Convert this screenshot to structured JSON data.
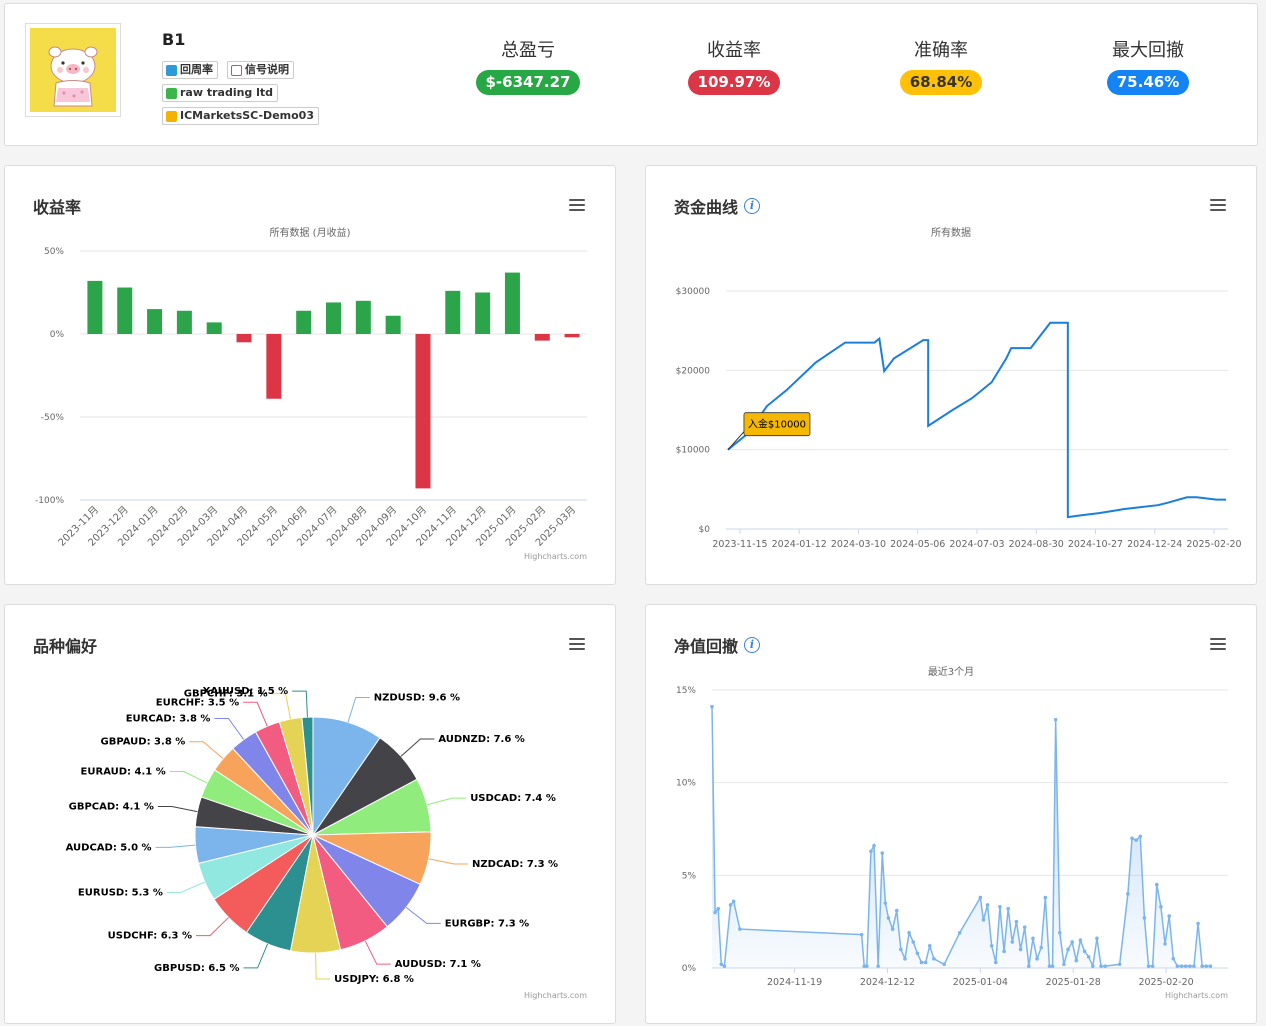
{
  "header": {
    "trader_name": "B1",
    "chips": [
      {
        "label": "回周率",
        "color": "#2f9bd6"
      },
      {
        "label": "信号说明",
        "color": "#d94a5a"
      },
      {
        "label": "raw trading ltd",
        "color": "#3cb54a"
      },
      {
        "label": "ICMarketsSC-Demo03",
        "color": "#f2b200"
      }
    ],
    "stats": [
      {
        "label": "总盈亏",
        "value": "$-6347.27",
        "color": "#28a745"
      },
      {
        "label": "收益率",
        "value": "109.97%",
        "color": "#dc3545"
      },
      {
        "label": "准确率",
        "value": "68.84%",
        "color": "#ffc107"
      },
      {
        "label": "最大回撤",
        "value": "75.46%",
        "color": "#1484f5"
      }
    ]
  },
  "panels": {
    "returns": {
      "title": "收益率",
      "subtitle": "所有数据 (月收益)",
      "credit": "Highcharts.com"
    },
    "equity": {
      "title": "资金曲线",
      "subtitle": "所有数据",
      "credit": "",
      "deposit_label": "入金$10000"
    },
    "symbols": {
      "title": "品种偏好",
      "credit": "Highcharts.com"
    },
    "drawdown": {
      "title": "净值回撤",
      "subtitle": "最近3个月",
      "credit": "Highcharts.com"
    }
  },
  "chart_data": [
    {
      "id": "returns",
      "type": "bar",
      "title": "收益率",
      "subtitle": "所有数据 (月收益)",
      "categories": [
        "2023-11月",
        "2023-12月",
        "2024-01月",
        "2024-02月",
        "2024-03月",
        "2024-04月",
        "2024-05月",
        "2024-06月",
        "2024-07月",
        "2024-08月",
        "2024-09月",
        "2024-10月",
        "2024-11月",
        "2024-12月",
        "2025-01月",
        "2025-02月",
        "2025-03月"
      ],
      "values": [
        32,
        28,
        15,
        14,
        7,
        -5,
        -39,
        14,
        19,
        20,
        11,
        -93,
        26,
        25,
        37,
        -4,
        -2
      ],
      "ylim": [
        -100,
        50
      ],
      "yticks": [
        50,
        0,
        -50,
        -100
      ],
      "ytick_labels": [
        "50%",
        "0%",
        "-50%",
        "-100%"
      ],
      "positive_color": "#2ca54a",
      "negative_color": "#dc3545"
    },
    {
      "id": "equity",
      "type": "line",
      "title": "资金曲线",
      "subtitle": "所有数据",
      "ylim": [
        0,
        30000
      ],
      "yticks": [
        0,
        10000,
        20000,
        30000
      ],
      "ytick_labels": [
        "$0",
        "$10000",
        "$20000",
        "$30000"
      ],
      "xticks": [
        "2023-11-15",
        "2024-01-12",
        "2024-03-10",
        "2024-05-06",
        "2024-07-03",
        "2024-08-30",
        "2024-10-27",
        "2024-12-24",
        "2025-02-20"
      ],
      "xlim": [
        -2,
        512
      ],
      "x": [
        0,
        20,
        40,
        60,
        90,
        120,
        150,
        155,
        160,
        170,
        200,
        205,
        230,
        250,
        270,
        285,
        290,
        310,
        330,
        345,
        348,
        360,
        380,
        400,
        405,
        440,
        450,
        470,
        480,
        500,
        510
      ],
      "y": [
        10000,
        12000,
        15500,
        17500,
        21000,
        23500,
        23500,
        24000,
        19900,
        21500,
        23800,
        13000,
        15000,
        16500,
        18500,
        21500,
        22800,
        22800,
        26000,
        26000,
        1500,
        1700,
        2000,
        2400,
        2500,
        3000,
        3300,
        4000,
        4000,
        3700,
        3700
      ],
      "annotation": {
        "label": "入金$10000",
        "x": 0,
        "y": 10000
      },
      "color": "#1a7fd8"
    },
    {
      "id": "symbols",
      "type": "pie",
      "title": "品种偏好",
      "slices": [
        {
          "name": "NZDUSD",
          "value": 9.6,
          "color": "#7cb5ec"
        },
        {
          "name": "AUDNZD",
          "value": 7.6,
          "color": "#434348"
        },
        {
          "name": "USDCAD",
          "value": 7.4,
          "color": "#90ed7d"
        },
        {
          "name": "NZDCAD",
          "value": 7.3,
          "color": "#f7a35c"
        },
        {
          "name": "EURGBP",
          "value": 7.3,
          "color": "#8085e9"
        },
        {
          "name": "AUDUSD",
          "value": 7.1,
          "color": "#f15c80"
        },
        {
          "name": "USDJPY",
          "value": 6.8,
          "color": "#e4d354"
        },
        {
          "name": "GBPUSD",
          "value": 6.5,
          "color": "#2b908f"
        },
        {
          "name": "USDCHF",
          "value": 6.3,
          "color": "#f45b5b"
        },
        {
          "name": "EURUSD",
          "value": 5.3,
          "color": "#91e8e1"
        },
        {
          "name": "AUDCAD",
          "value": 5.0,
          "color": "#7cb5ec"
        },
        {
          "name": "GBPCAD",
          "value": 4.1,
          "color": "#434348"
        },
        {
          "name": "EURAUD",
          "value": 4.1,
          "color": "#90ed7d"
        },
        {
          "name": "GBPAUD",
          "value": 3.8,
          "color": "#f7a35c"
        },
        {
          "name": "EURCAD",
          "value": 3.8,
          "color": "#8085e9"
        },
        {
          "name": "EURCHF",
          "value": 3.5,
          "color": "#f15c80"
        },
        {
          "name": "GBPCHF",
          "value": 3.1,
          "color": "#e4d354"
        },
        {
          "name": "XAUUSD",
          "value": 1.5,
          "color": "#2b908f"
        }
      ]
    },
    {
      "id": "drawdown",
      "type": "area",
      "title": "净值回撤",
      "subtitle": "最近3个月",
      "ylim": [
        0,
        15
      ],
      "yticks": [
        0,
        5,
        10,
        15
      ],
      "ytick_labels": [
        "0%",
        "5%",
        "10%",
        "15%"
      ],
      "xlim": [
        0,
        100
      ],
      "xticks": [
        {
          "label": "2024-11-19",
          "x": 16
        },
        {
          "label": "2024-12-12",
          "x": 34
        },
        {
          "label": "2025-01-04",
          "x": 52
        },
        {
          "label": "2025-01-28",
          "x": 70
        },
        {
          "label": "2025-02-20",
          "x": 88
        }
      ],
      "x": [
        0,
        0.6,
        1.2,
        1.8,
        2.4,
        3.6,
        4.2,
        5.4,
        29,
        29.5,
        30,
        30.8,
        31.4,
        32.2,
        33,
        33.6,
        34.2,
        35,
        35.8,
        36.6,
        37.4,
        38.2,
        39,
        39.8,
        40.6,
        41.4,
        42.2,
        43,
        45,
        48,
        52,
        52.6,
        53.4,
        54.2,
        55,
        55.8,
        56.6,
        57.4,
        58.2,
        59,
        59.8,
        60.6,
        61.4,
        62.2,
        63,
        63.8,
        64.6,
        65.4,
        66,
        66.6,
        67.4,
        68.2,
        69,
        69.8,
        70.6,
        71.4,
        72.2,
        73,
        73.8,
        74.6,
        75.4,
        76.2,
        79,
        80.6,
        81.4,
        82.2,
        83,
        83.8,
        84.6,
        85.4,
        86.2,
        87,
        87.8,
        88.6,
        89.4,
        90.2,
        91,
        91.8,
        92.6,
        93.4,
        94.2,
        95,
        95.8,
        96.6
      ],
      "y": [
        14.1,
        3.0,
        3.2,
        0.2,
        0.1,
        3.4,
        3.6,
        2.1,
        1.8,
        0.1,
        0.1,
        6.3,
        6.6,
        0.1,
        6.2,
        3.5,
        2.7,
        2.1,
        3.1,
        1.0,
        0.5,
        1.9,
        1.4,
        0.8,
        0.3,
        0.3,
        1.2,
        0.5,
        0.2,
        1.9,
        3.8,
        2.6,
        3.4,
        1.2,
        0.3,
        3.3,
        0.9,
        3.2,
        1.4,
        2.5,
        1.0,
        2.2,
        0.1,
        1.6,
        0.5,
        1.1,
        3.8,
        0.1,
        0.1,
        13.4,
        1.9,
        0.2,
        1.0,
        1.4,
        0.4,
        1.5,
        0.9,
        0.6,
        0.1,
        1.6,
        0.1,
        0.1,
        0.2,
        4.0,
        7.0,
        6.9,
        7.1,
        2.7,
        0.1,
        0.1,
        4.5,
        3.3,
        1.3,
        2.8,
        0.5,
        0.1,
        0.1,
        0.1,
        0.1,
        0.1,
        2.4,
        0.1,
        0.1,
        0.1
      ],
      "color": "#7cb5ec"
    }
  ]
}
